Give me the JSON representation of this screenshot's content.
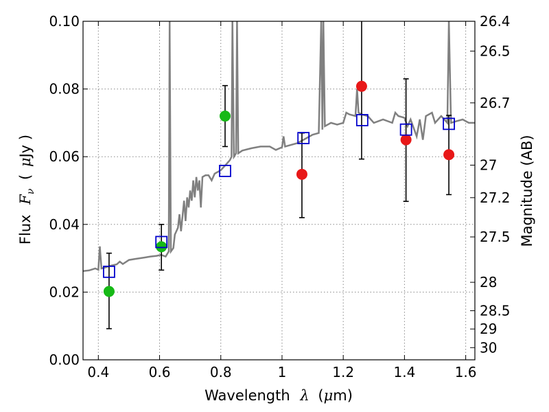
{
  "chart_data": {
    "type": "scatter",
    "title": "",
    "xlabel": {
      "text": "Wavelength",
      "symbol": "λ",
      "unit_open": "(",
      "unit_mu": "μ",
      "unit_rest": "m)"
    },
    "ylabel": {
      "text": "Flux",
      "symbol_main": "F",
      "symbol_sub": "ν",
      "unit_open": "(",
      "unit_mu": "μ",
      "unit_rest": "Jy )"
    },
    "y2label": "Magnitude (AB)",
    "xlim": [
      0.35,
      1.63
    ],
    "ylim": [
      0.0,
      0.1
    ],
    "grid": true,
    "x_ticks": [
      0.4,
      0.6,
      0.8,
      1.0,
      1.2,
      1.4,
      1.6
    ],
    "x_tick_labels": [
      "0.4",
      "0.6",
      "0.8",
      "1",
      "1.2",
      "1.4",
      "1.6"
    ],
    "y_ticks": [
      0.0,
      0.02,
      0.04,
      0.06,
      0.08,
      0.1
    ],
    "y_tick_labels": [
      "0.00",
      "0.02",
      "0.04",
      "0.06",
      "0.08",
      "0.10"
    ],
    "y2_ticks": [
      {
        "label": "26.4",
        "flux": 0.1
      },
      {
        "label": "26.5",
        "flux": 0.0912
      },
      {
        "label": "26.7",
        "flux": 0.0759
      },
      {
        "label": "27",
        "flux": 0.0575
      },
      {
        "label": "27.2",
        "flux": 0.0479
      },
      {
        "label": "27.5",
        "flux": 0.0363
      },
      {
        "label": "28",
        "flux": 0.0229
      },
      {
        "label": "28.5",
        "flux": 0.0145
      },
      {
        "label": "29",
        "flux": 0.0091
      },
      {
        "label": "30",
        "flux": 0.0036
      }
    ],
    "observed_points": [
      {
        "x": 0.435,
        "y": 0.0202,
        "err_low": 0.0092,
        "err_high": 0.0315,
        "color": "#16b916"
      },
      {
        "x": 0.606,
        "y": 0.0334,
        "err_low": 0.0265,
        "err_high": 0.04,
        "color": "#16b916"
      },
      {
        "x": 0.814,
        "y": 0.072,
        "err_low": 0.063,
        "err_high": 0.081,
        "color": "#16b916"
      },
      {
        "x": 1.065,
        "y": 0.0548,
        "err_low": 0.042,
        "err_high": 0.067,
        "color": "#e81818"
      },
      {
        "x": 1.26,
        "y": 0.0808,
        "err_low": 0.0593,
        "err_high": 0.102,
        "color": "#e81818"
      },
      {
        "x": 1.405,
        "y": 0.065,
        "err_low": 0.0468,
        "err_high": 0.083,
        "color": "#e81818"
      },
      {
        "x": 1.545,
        "y": 0.0606,
        "err_low": 0.0488,
        "err_high": 0.0722,
        "color": "#e81818"
      }
    ],
    "model_points": [
      {
        "x": 0.435,
        "y": 0.026
      },
      {
        "x": 0.606,
        "y": 0.0348
      },
      {
        "x": 0.814,
        "y": 0.0558
      },
      {
        "x": 1.07,
        "y": 0.0655
      },
      {
        "x": 1.262,
        "y": 0.0708
      },
      {
        "x": 1.405,
        "y": 0.068
      },
      {
        "x": 1.545,
        "y": 0.0697
      }
    ],
    "spectrum": [
      [
        0.35,
        0.0262
      ],
      [
        0.37,
        0.0264
      ],
      [
        0.39,
        0.027
      ],
      [
        0.4,
        0.0266
      ],
      [
        0.405,
        0.0335
      ],
      [
        0.41,
        0.027
      ],
      [
        0.42,
        0.0272
      ],
      [
        0.44,
        0.0278
      ],
      [
        0.46,
        0.0282
      ],
      [
        0.47,
        0.029
      ],
      [
        0.48,
        0.0283
      ],
      [
        0.5,
        0.0295
      ],
      [
        0.52,
        0.0298
      ],
      [
        0.55,
        0.0302
      ],
      [
        0.57,
        0.0305
      ],
      [
        0.59,
        0.0307
      ],
      [
        0.605,
        0.031
      ],
      [
        0.62,
        0.0305
      ],
      [
        0.63,
        0.032
      ],
      [
        0.633,
        0.1
      ],
      [
        0.637,
        0.032
      ],
      [
        0.645,
        0.033
      ],
      [
        0.65,
        0.037
      ],
      [
        0.66,
        0.039
      ],
      [
        0.665,
        0.043
      ],
      [
        0.67,
        0.038
      ],
      [
        0.68,
        0.047
      ],
      [
        0.685,
        0.041
      ],
      [
        0.69,
        0.048
      ],
      [
        0.695,
        0.045
      ],
      [
        0.7,
        0.05
      ],
      [
        0.705,
        0.047
      ],
      [
        0.71,
        0.053
      ],
      [
        0.715,
        0.048
      ],
      [
        0.72,
        0.054
      ],
      [
        0.725,
        0.05
      ],
      [
        0.73,
        0.053
      ],
      [
        0.735,
        0.045
      ],
      [
        0.74,
        0.054
      ],
      [
        0.75,
        0.0545
      ],
      [
        0.76,
        0.0545
      ],
      [
        0.77,
        0.053
      ],
      [
        0.78,
        0.055
      ],
      [
        0.79,
        0.0555
      ],
      [
        0.8,
        0.056
      ],
      [
        0.81,
        0.057
      ],
      [
        0.82,
        0.058
      ],
      [
        0.83,
        0.059
      ],
      [
        0.835,
        0.06
      ],
      [
        0.838,
        0.1
      ],
      [
        0.843,
        0.06
      ],
      [
        0.85,
        0.061
      ],
      [
        0.853,
        0.1
      ],
      [
        0.857,
        0.061
      ],
      [
        0.87,
        0.0618
      ],
      [
        0.9,
        0.0625
      ],
      [
        0.93,
        0.063
      ],
      [
        0.96,
        0.063
      ],
      [
        0.98,
        0.062
      ],
      [
        1.0,
        0.0628
      ],
      [
        1.005,
        0.066
      ],
      [
        1.01,
        0.063
      ],
      [
        1.03,
        0.0635
      ],
      [
        1.05,
        0.064
      ],
      [
        1.07,
        0.065
      ],
      [
        1.09,
        0.066
      ],
      [
        1.1,
        0.0665
      ],
      [
        1.12,
        0.067
      ],
      [
        1.128,
        0.1
      ],
      [
        1.132,
        0.068
      ],
      [
        1.135,
        0.1
      ],
      [
        1.14,
        0.069
      ],
      [
        1.16,
        0.07
      ],
      [
        1.18,
        0.0695
      ],
      [
        1.2,
        0.07
      ],
      [
        1.21,
        0.073
      ],
      [
        1.22,
        0.0725
      ],
      [
        1.24,
        0.072
      ],
      [
        1.245,
        0.08
      ],
      [
        1.25,
        0.073
      ],
      [
        1.26,
        0.0725
      ],
      [
        1.28,
        0.072
      ],
      [
        1.3,
        0.07
      ],
      [
        1.33,
        0.071
      ],
      [
        1.36,
        0.07
      ],
      [
        1.37,
        0.073
      ],
      [
        1.38,
        0.072
      ],
      [
        1.4,
        0.0715
      ],
      [
        1.41,
        0.069
      ],
      [
        1.42,
        0.071
      ],
      [
        1.44,
        0.066
      ],
      [
        1.45,
        0.071
      ],
      [
        1.46,
        0.065
      ],
      [
        1.47,
        0.072
      ],
      [
        1.49,
        0.073
      ],
      [
        1.5,
        0.07
      ],
      [
        1.52,
        0.072
      ],
      [
        1.54,
        0.07
      ],
      [
        1.545,
        0.1
      ],
      [
        1.552,
        0.07
      ],
      [
        1.57,
        0.0705
      ],
      [
        1.59,
        0.071
      ],
      [
        1.61,
        0.07
      ],
      [
        1.63,
        0.07
      ]
    ],
    "colors": {
      "spectrum": "#808080",
      "model_marker": "#0000cc",
      "error_bar": "#000000",
      "grid": "#888888"
    }
  }
}
